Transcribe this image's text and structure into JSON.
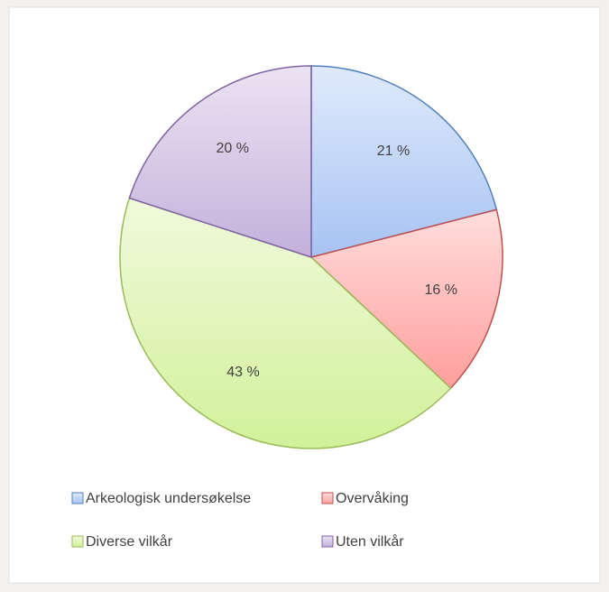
{
  "chart_data": {
    "type": "pie",
    "categories": [
      "Arkeologisk undersøkelse",
      "Overvåking",
      "Diverse vilkår",
      "Uten vilkår"
    ],
    "values": [
      21,
      16,
      43,
      20
    ],
    "value_labels": [
      "21 %",
      "16 %",
      "43 %",
      "20 %"
    ],
    "colors": [
      "#a7c3f4",
      "#ff9f9d",
      "#d2f19a",
      "#c4b0db"
    ],
    "edge_colors": [
      "#4f81bd",
      "#c0504d",
      "#9bbb59",
      "#8064a2"
    ],
    "legend": "bottom"
  }
}
